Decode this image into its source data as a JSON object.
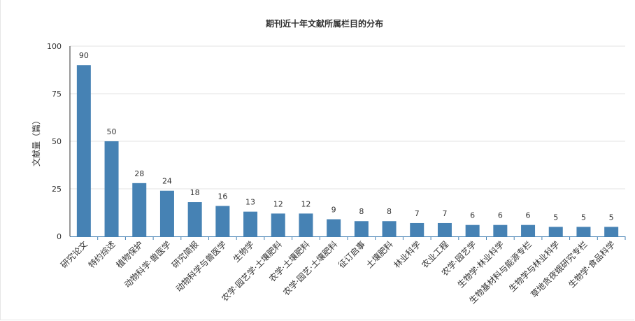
{
  "chart_data": {
    "type": "bar",
    "title": "期刊近十年文献所属栏目的分布",
    "xlabel": "",
    "ylabel": "文献量（篇）",
    "ylim": [
      0,
      100
    ],
    "yticks": [
      0,
      25,
      50,
      75,
      100
    ],
    "grid": true,
    "bar_color": "#4682b4",
    "categories": [
      "研究论文",
      "特约综述",
      "植物保护",
      "动物科学·兽医学",
      "研究简报",
      "动物科学与兽医学",
      "生物学",
      "农学·园艺学·土壤肥料",
      "农学·土壤肥料",
      "农学·园艺·土壤肥料",
      "征订启事",
      "土壤肥料",
      "林业科学",
      "农业工程",
      "农学·园艺学",
      "生物学·林业科学",
      "生物基材料与能源专栏",
      "生物学与林业科学",
      "草地贪夜蛾研究专栏",
      "生物学·食品科学"
    ],
    "values": [
      90,
      50,
      28,
      24,
      18,
      16,
      13,
      12,
      12,
      9,
      8,
      8,
      7,
      7,
      6,
      6,
      6,
      5,
      5,
      5
    ]
  }
}
